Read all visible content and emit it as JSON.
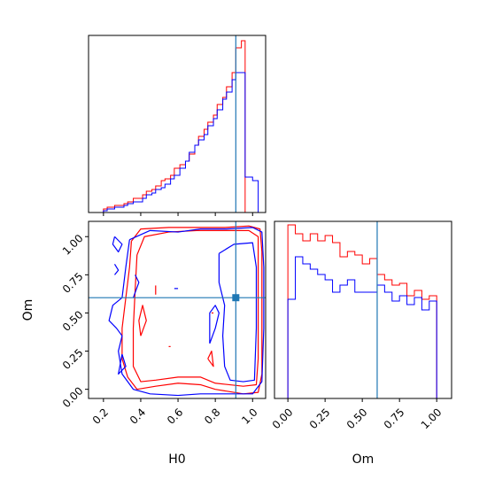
{
  "chart_data": [
    {
      "type": "histogram",
      "panel": "H0 marginal",
      "xlim": [
        0.12,
        1.07
      ],
      "truth_x": 0.91,
      "ylim": [
        0,
        1
      ],
      "series": [
        {
          "color": "#ff0000",
          "step": "post",
          "x": [
            0.16,
            0.2,
            0.22,
            0.24,
            0.26,
            0.28,
            0.31,
            0.33,
            0.36,
            0.38,
            0.41,
            0.43,
            0.46,
            0.48,
            0.51,
            0.53,
            0.56,
            0.58,
            0.61,
            0.64,
            0.66,
            0.69,
            0.71,
            0.74,
            0.76,
            0.79,
            0.81,
            0.84,
            0.86,
            0.89,
            0.91,
            0.94,
            0.96,
            1.0,
            1.01
          ],
          "y": [
            0.0,
            0.02,
            0.03,
            0.03,
            0.04,
            0.04,
            0.05,
            0.06,
            0.08,
            0.08,
            0.1,
            0.12,
            0.13,
            0.15,
            0.18,
            0.19,
            0.21,
            0.25,
            0.27,
            0.29,
            0.33,
            0.38,
            0.43,
            0.47,
            0.51,
            0.55,
            0.61,
            0.65,
            0.71,
            0.79,
            0.93,
            0.97,
            0.0,
            0.0,
            0.0
          ]
        },
        {
          "color": "#0000ff",
          "step": "post",
          "x": [
            0.16,
            0.2,
            0.22,
            0.24,
            0.26,
            0.28,
            0.31,
            0.33,
            0.36,
            0.38,
            0.41,
            0.43,
            0.46,
            0.48,
            0.51,
            0.53,
            0.56,
            0.58,
            0.61,
            0.64,
            0.66,
            0.69,
            0.71,
            0.74,
            0.76,
            0.79,
            0.81,
            0.84,
            0.86,
            0.89,
            0.91,
            0.94,
            0.96,
            1.0,
            1.03
          ],
          "y": [
            0.0,
            0.01,
            0.02,
            0.02,
            0.03,
            0.03,
            0.04,
            0.05,
            0.06,
            0.06,
            0.08,
            0.1,
            0.11,
            0.13,
            0.14,
            0.16,
            0.19,
            0.21,
            0.25,
            0.29,
            0.34,
            0.38,
            0.41,
            0.44,
            0.49,
            0.53,
            0.58,
            0.64,
            0.68,
            0.75,
            0.79,
            0.79,
            0.2,
            0.18,
            0.0
          ]
        }
      ]
    },
    {
      "type": "contour",
      "panel": "H0 vs Om joint",
      "xlabel": "H0",
      "ylabel": "Om",
      "xlim": [
        0.12,
        1.07
      ],
      "ylim": [
        -0.06,
        1.1
      ],
      "xticks": [
        "0.2",
        "0.4",
        "0.6",
        "0.8",
        "1.0"
      ],
      "yticks": [
        "0.00",
        "0.25",
        "0.50",
        "0.75",
        "1.00"
      ],
      "truth": [
        0.91,
        0.6
      ],
      "series": [
        {
          "color": "#ff0000",
          "contours": [
            [
              [
                0.35,
                0.97
              ],
              [
                0.4,
                1.05
              ],
              [
                0.55,
                1.06
              ],
              [
                0.7,
                1.06
              ],
              [
                0.85,
                1.06
              ],
              [
                0.98,
                1.07
              ],
              [
                1.04,
                1.05
              ],
              [
                1.05,
                0.9
              ],
              [
                1.05,
                0.5
              ],
              [
                1.05,
                0.1
              ],
              [
                1.03,
                -0.02
              ],
              [
                0.95,
                -0.03
              ],
              [
                0.8,
                0.0
              ],
              [
                0.72,
                0.03
              ],
              [
                0.6,
                0.04
              ],
              [
                0.48,
                0.02
              ],
              [
                0.38,
                0.0
              ],
              [
                0.33,
                0.08
              ],
              [
                0.3,
                0.2
              ],
              [
                0.3,
                0.4
              ],
              [
                0.32,
                0.6
              ],
              [
                0.34,
                0.8
              ],
              [
                0.35,
                0.97
              ]
            ],
            [
              [
                0.38,
                0.88
              ],
              [
                0.42,
                1.0
              ],
              [
                0.55,
                1.03
              ],
              [
                0.7,
                1.04
              ],
              [
                0.85,
                1.04
              ],
              [
                0.98,
                1.04
              ],
              [
                1.03,
                1.0
              ],
              [
                1.03,
                0.6
              ],
              [
                1.03,
                0.2
              ],
              [
                1.02,
                0.03
              ],
              [
                0.95,
                0.02
              ],
              [
                0.8,
                0.04
              ],
              [
                0.72,
                0.08
              ],
              [
                0.6,
                0.08
              ],
              [
                0.48,
                0.06
              ],
              [
                0.4,
                0.05
              ],
              [
                0.36,
                0.15
              ],
              [
                0.36,
                0.4
              ],
              [
                0.37,
                0.65
              ],
              [
                0.38,
                0.88
              ]
            ],
            [
              [
                0.48,
                0.62
              ],
              [
                0.48,
                0.68
              ]
            ],
            [
              [
                0.55,
                0.28
              ],
              [
                0.56,
                0.28
              ]
            ],
            [
              [
                0.78,
                0.5
              ],
              [
                0.79,
                0.5
              ]
            ],
            [
              [
                0.4,
                0.35
              ],
              [
                0.43,
                0.45
              ],
              [
                0.41,
                0.55
              ],
              [
                0.39,
                0.45
              ],
              [
                0.4,
                0.35
              ]
            ],
            [
              [
                0.76,
                0.2
              ],
              [
                0.78,
                0.25
              ],
              [
                0.79,
                0.15
              ],
              [
                0.76,
                0.2
              ]
            ]
          ]
        },
        {
          "color": "#0000ff",
          "contours": [
            [
              [
                0.34,
                0.98
              ],
              [
                0.45,
                1.04
              ],
              [
                0.6,
                1.03
              ],
              [
                0.72,
                1.05
              ],
              [
                0.86,
                1.05
              ],
              [
                1.0,
                1.06
              ],
              [
                1.05,
                1.03
              ],
              [
                1.06,
                0.8
              ],
              [
                1.06,
                0.4
              ],
              [
                1.05,
                0.05
              ],
              [
                1.0,
                -0.03
              ],
              [
                0.85,
                -0.03
              ],
              [
                0.72,
                -0.03
              ],
              [
                0.6,
                -0.04
              ],
              [
                0.45,
                -0.03
              ],
              [
                0.36,
                0.0
              ],
              [
                0.3,
                0.1
              ],
              [
                0.28,
                0.25
              ],
              [
                0.3,
                0.35
              ],
              [
                0.27,
                0.4
              ],
              [
                0.23,
                0.45
              ],
              [
                0.25,
                0.55
              ],
              [
                0.3,
                0.6
              ],
              [
                0.32,
                0.8
              ],
              [
                0.34,
                0.98
              ]
            ],
            [
              [
                0.82,
                0.89
              ],
              [
                0.9,
                0.95
              ],
              [
                1.0,
                0.96
              ],
              [
                1.02,
                0.8
              ],
              [
                1.02,
                0.4
              ],
              [
                1.01,
                0.06
              ],
              [
                0.95,
                0.05
              ],
              [
                0.88,
                0.06
              ],
              [
                0.85,
                0.15
              ],
              [
                0.84,
                0.35
              ],
              [
                0.85,
                0.55
              ],
              [
                0.82,
                0.7
              ],
              [
                0.82,
                0.89
              ]
            ],
            [
              [
                0.26,
                1.0
              ],
              [
                0.3,
                0.95
              ],
              [
                0.28,
                0.9
              ],
              [
                0.25,
                0.95
              ],
              [
                0.26,
                1.0
              ]
            ],
            [
              [
                0.26,
                0.82
              ],
              [
                0.28,
                0.78
              ],
              [
                0.26,
                0.75
              ]
            ],
            [
              [
                0.3,
                0.23
              ],
              [
                0.32,
                0.15
              ],
              [
                0.28,
                0.1
              ],
              [
                0.3,
                0.23
              ]
            ],
            [
              [
                0.36,
                0.6
              ],
              [
                0.39,
                0.7
              ],
              [
                0.37,
                0.75
              ]
            ],
            [
              [
                0.58,
                0.66
              ],
              [
                0.6,
                0.66
              ]
            ],
            [
              [
                0.77,
                0.3
              ],
              [
                0.8,
                0.4
              ],
              [
                0.82,
                0.5
              ],
              [
                0.8,
                0.55
              ],
              [
                0.77,
                0.5
              ],
              [
                0.77,
                0.3
              ]
            ]
          ]
        }
      ]
    },
    {
      "type": "histogram",
      "panel": "Om marginal",
      "xlabel": "Om",
      "xlim": [
        -0.09,
        1.1
      ],
      "xticks": [
        "0.00",
        "0.25",
        "0.50",
        "0.75",
        "1.00"
      ],
      "truth_x": 0.6,
      "ylim": [
        0,
        1
      ],
      "series": [
        {
          "color": "#ff0000",
          "step": "post",
          "x": [
            0.0,
            0.05,
            0.1,
            0.15,
            0.2,
            0.25,
            0.3,
            0.35,
            0.4,
            0.45,
            0.5,
            0.55,
            0.6,
            0.65,
            0.7,
            0.75,
            0.8,
            0.85,
            0.9,
            0.95,
            1.0
          ],
          "y": [
            0.98,
            0.93,
            0.89,
            0.93,
            0.89,
            0.92,
            0.88,
            0.8,
            0.83,
            0.81,
            0.76,
            0.79,
            0.7,
            0.67,
            0.64,
            0.65,
            0.58,
            0.61,
            0.56,
            0.58,
            0.0
          ]
        },
        {
          "color": "#0000ff",
          "step": "post",
          "x": [
            -0.09,
            0.0,
            0.05,
            0.1,
            0.15,
            0.2,
            0.25,
            0.3,
            0.35,
            0.4,
            0.45,
            0.5,
            0.55,
            0.6,
            0.65,
            0.7,
            0.75,
            0.8,
            0.85,
            0.9,
            0.95,
            1.0,
            1.1
          ],
          "y": [
            0.0,
            0.56,
            0.8,
            0.76,
            0.73,
            0.7,
            0.67,
            0.6,
            0.64,
            0.67,
            0.6,
            0.6,
            0.6,
            0.64,
            0.6,
            0.55,
            0.58,
            0.53,
            0.57,
            0.5,
            0.55,
            0.0,
            0.0
          ]
        }
      ]
    }
  ]
}
